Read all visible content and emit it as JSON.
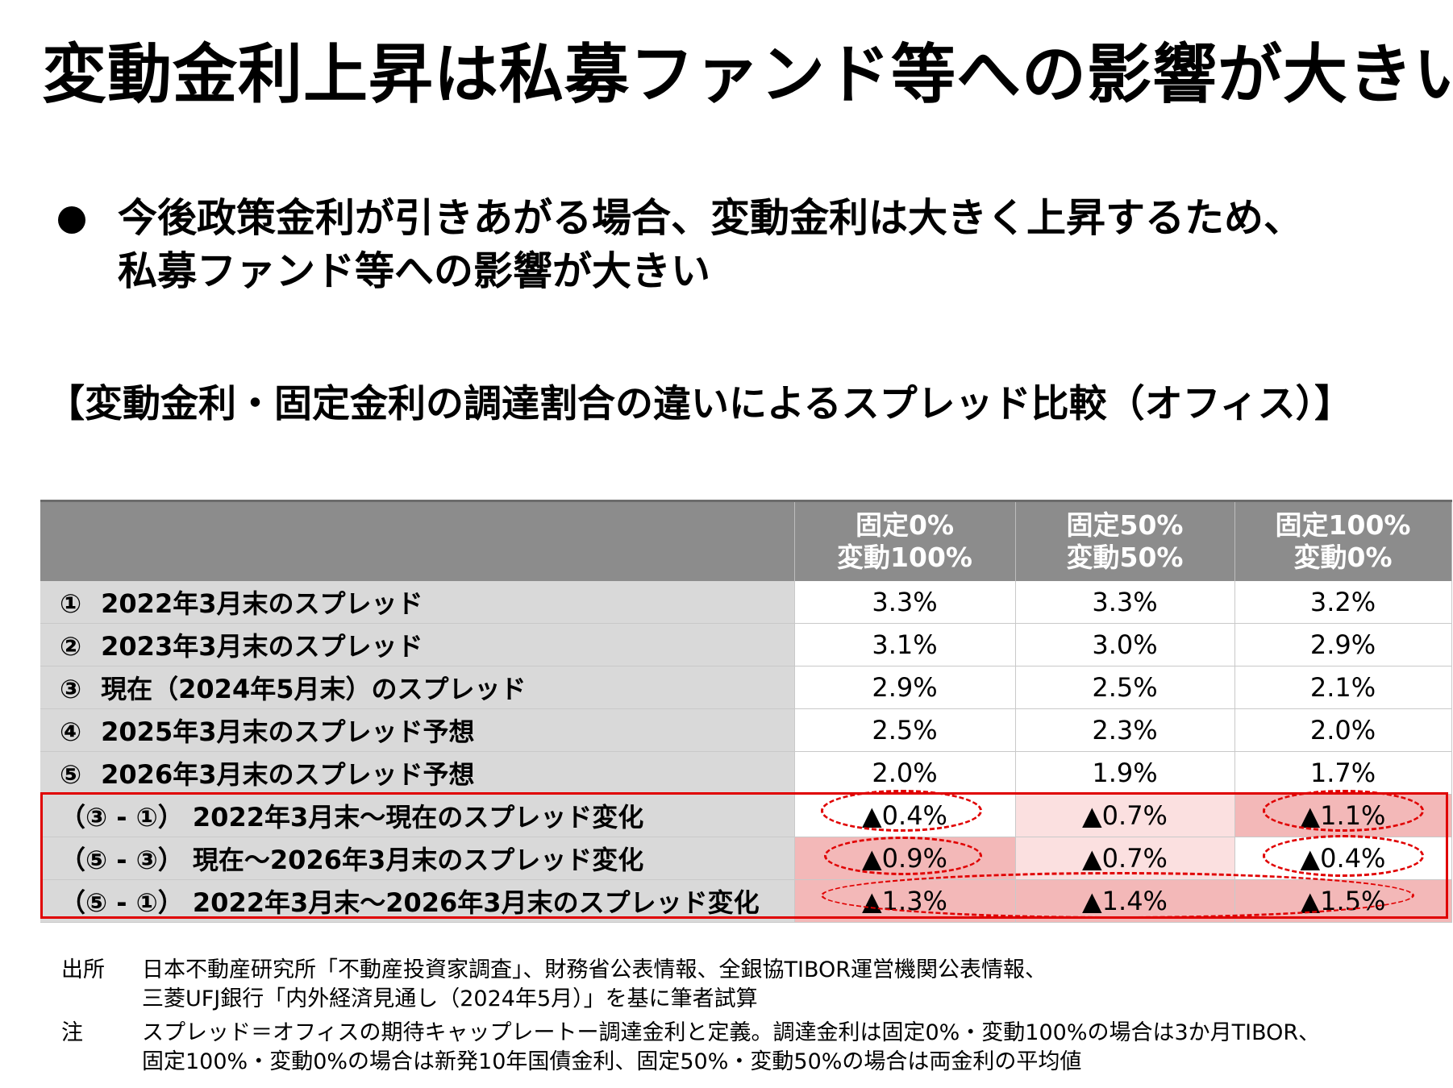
{
  "title": "変動金利上昇は私募ファンド等への影響が大きい",
  "bullet": {
    "line1": "今後政策金利が引きあがる場合、変動金利は大きく上昇するため、",
    "line2": "私募ファンド等への影響が大きい"
  },
  "subtitle": "【変動金利・固定金利の調達割合の違いによるスプレッド比較（オフィス）】",
  "table": {
    "header": {
      "col1": {
        "line1": "固定0%",
        "line2": "変動100%"
      },
      "col2": {
        "line1": "固定50%",
        "line2": "変動50%"
      },
      "col3": {
        "line1": "固定100%",
        "line2": "変動0%"
      }
    },
    "rows": [
      {
        "num": "①",
        "label": "2022年3月末のスプレッド",
        "v1": "3.3%",
        "v2": "3.3%",
        "v3": "3.2%"
      },
      {
        "num": "②",
        "label": "2023年3月末のスプレッド",
        "v1": "3.1%",
        "v2": "3.0%",
        "v3": "2.9%"
      },
      {
        "num": "③",
        "label": "現在（2024年5月末）のスプレッド",
        "v1": "2.9%",
        "v2": "2.5%",
        "v3": "2.1%"
      },
      {
        "num": "④",
        "label": "2025年3月末のスプレッド予想",
        "v1": "2.5%",
        "v2": "2.3%",
        "v3": "2.0%"
      },
      {
        "num": "⑤",
        "label": "2026年3月末のスプレッド予想",
        "v1": "2.0%",
        "v2": "1.9%",
        "v3": "1.7%"
      },
      {
        "num": "（③ - ①）",
        "label": "2022年3月末～現在のスプレッド変化",
        "v1": "▲0.4%",
        "v2": "▲0.7%",
        "v3": "▲1.1%"
      },
      {
        "num": "（⑤ - ③）",
        "label": "現在～2026年3月末のスプレッド変化",
        "v1": "▲0.9%",
        "v2": "▲0.7%",
        "v3": "▲0.4%"
      },
      {
        "num": "（⑤ - ①）",
        "label": "2022年3月末～2026年3月末のスプレッド変化",
        "v1": "▲1.3%",
        "v2": "▲1.4%",
        "v3": "▲1.5%"
      }
    ]
  },
  "notes": {
    "source_head": "出所",
    "source_line1": "日本不動産研究所「不動産投資家調査」、財務省公表情報、全銀協TIBOR運営機関公表情報、",
    "source_line2": "三菱UFJ銀行「内外経済見通し（2024年5月）」を基に筆者試算",
    "note_head": "注",
    "note_line1": "スプレッド＝オフィスの期待キャップレートー調達金利と定義。調達金利は固定0%・変動100%の場合は3か月TIBOR、",
    "note_line2": "固定100%・変動0%の場合は新発10年国債金利、固定50%・変動50%の場合は両金利の平均値"
  },
  "colors": {
    "header_bg": "#8c8c8c",
    "label_bg": "#d9d9d9",
    "highlight_red": "#e00000",
    "pink_light": "#fbe0e0",
    "pink_dark": "#f3b8b8"
  }
}
